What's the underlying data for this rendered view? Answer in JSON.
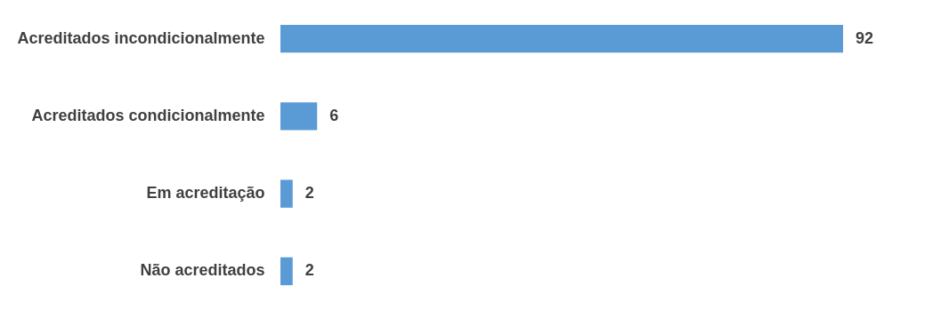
{
  "chart_data": {
    "type": "bar",
    "orientation": "horizontal",
    "categories": [
      "Acreditados incondicionalmente",
      "Acreditados condicionalmente",
      "Em acreditação",
      "Não acreditados"
    ],
    "values": [
      92,
      6,
      2,
      2
    ],
    "color": "#5b9bd5",
    "data_labels": true
  }
}
